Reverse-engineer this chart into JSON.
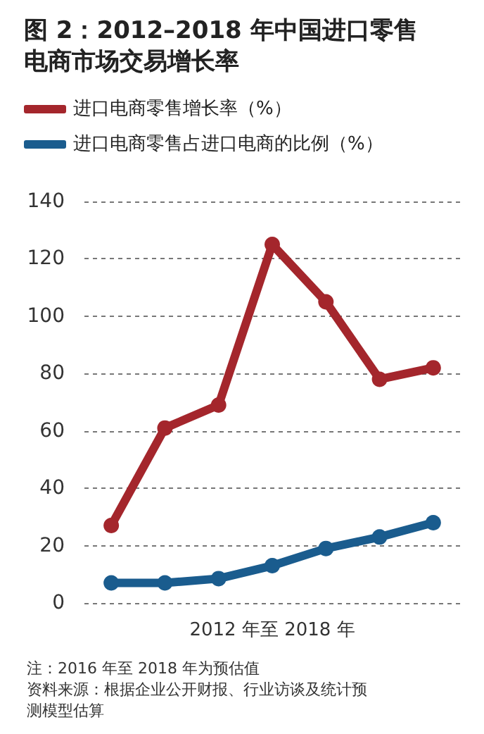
{
  "chart_data": {
    "type": "line",
    "title": "图 2：2012–2018 年中国进口零售电商市场交易增长率",
    "xlabel": "2012 年至 2018 年",
    "categories": [
      null,
      null,
      null,
      null,
      null,
      null,
      null
    ],
    "series": [
      {
        "name": "进口电商零售增长率（%）",
        "color": "#a4262c",
        "values": [
          27,
          61,
          69,
          125,
          105,
          78,
          82
        ]
      },
      {
        "name": "进口电商零售占进口电商的比例（%）",
        "color": "#1a5c8e",
        "values": [
          7,
          7,
          8.5,
          13,
          19,
          23,
          28
        ]
      }
    ],
    "ylim": [
      0,
      140
    ],
    "yticks": [
      0,
      20,
      40,
      60,
      80,
      100,
      120,
      140
    ],
    "grid": "y",
    "legend": "top left",
    "marker": "circle",
    "line_style": "solid",
    "annotations": [
      "注：2016 年至 2018 年为预估值",
      "资料来源：根据企业公开财报、行业访谈及统计预测模型估算"
    ]
  }
}
